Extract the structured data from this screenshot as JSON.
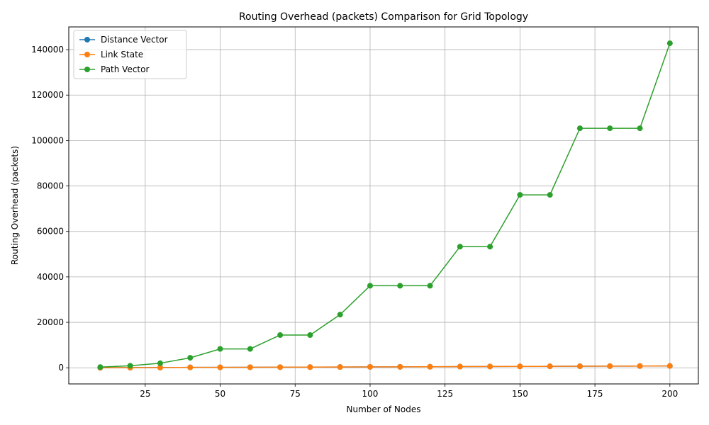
{
  "chart_data": {
    "type": "line",
    "title": "Routing Overhead (packets) Comparison for Grid Topology",
    "xlabel": "Number of Nodes",
    "ylabel": "Routing Overhead (packets)",
    "x": [
      10,
      20,
      30,
      40,
      50,
      60,
      70,
      80,
      90,
      100,
      110,
      120,
      130,
      140,
      150,
      160,
      170,
      180,
      190,
      200
    ],
    "xlim": [
      -0.5,
      209.5
    ],
    "ylim": [
      -7100,
      150000
    ],
    "xticks": [
      25,
      50,
      75,
      100,
      125,
      150,
      175,
      200
    ],
    "yticks": [
      0,
      20000,
      40000,
      60000,
      80000,
      100000,
      120000,
      140000
    ],
    "grid": true,
    "legend_position": "top-left",
    "series": [
      {
        "name": "Distance Vector",
        "color": "#1f77b4",
        "values": [
          20,
          60,
          90,
          180,
          200,
          240,
          280,
          300,
          340,
          400,
          420,
          460,
          520,
          560,
          600,
          640,
          680,
          720,
          760,
          800
        ]
      },
      {
        "name": "Link State",
        "color": "#ff7f0e",
        "values": [
          20,
          60,
          90,
          180,
          200,
          240,
          280,
          300,
          340,
          400,
          420,
          460,
          520,
          560,
          600,
          640,
          680,
          720,
          760,
          800
        ]
      },
      {
        "name": "Path Vector",
        "color": "#2ca02c",
        "values": [
          300,
          900,
          2000,
          4400,
          8300,
          8300,
          14400,
          14400,
          23400,
          36100,
          36100,
          36100,
          53300,
          53300,
          76100,
          76100,
          105400,
          105400,
          105400,
          142800
        ]
      }
    ]
  }
}
